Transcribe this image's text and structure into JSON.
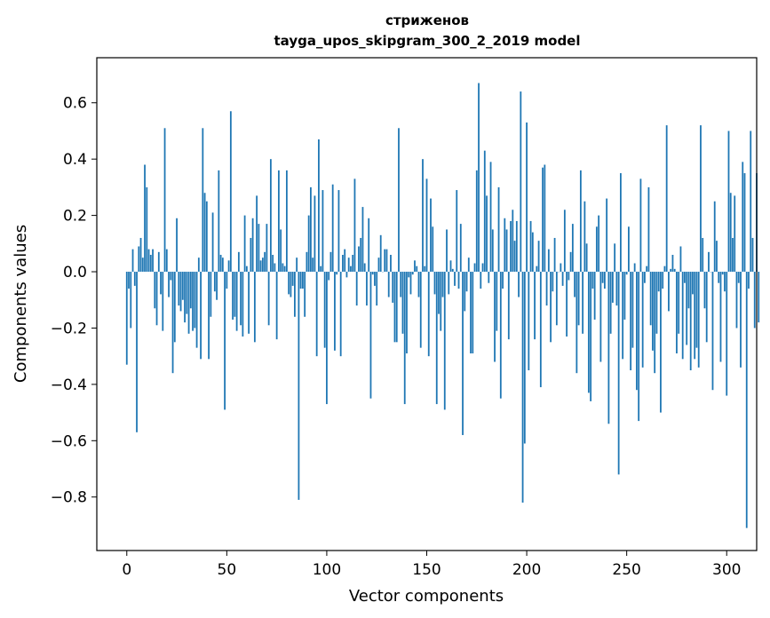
{
  "chart_data": {
    "type": "bar",
    "title_line1": "стриженов",
    "title_line2": "tayga_upos_skipgram_300_2_2019 model",
    "xlabel": "Vector components",
    "ylabel": "Components values",
    "xlim": [
      -15,
      315
    ],
    "ylim": [
      -0.99,
      0.76
    ],
    "xticks": [
      0,
      50,
      100,
      150,
      200,
      250,
      300
    ],
    "xtick_labels": [
      "0",
      "50",
      "100",
      "150",
      "200",
      "250",
      "300"
    ],
    "yticks": [
      -0.8,
      -0.6,
      -0.4,
      -0.2,
      0.0,
      0.2,
      0.4,
      0.6
    ],
    "ytick_labels": [
      "−0.8",
      "−0.6",
      "−0.4",
      "−0.2",
      "0.0",
      "0.2",
      "0.4",
      "0.6"
    ],
    "bar_color": "#1f77b4",
    "grid": false,
    "values": [
      -0.33,
      -0.06,
      -0.2,
      0.08,
      -0.05,
      -0.57,
      0.09,
      0.12,
      0.05,
      0.38,
      0.3,
      0.08,
      0.06,
      0.08,
      -0.13,
      -0.19,
      0.07,
      -0.08,
      -0.21,
      0.51,
      0.08,
      -0.09,
      -0.03,
      -0.36,
      -0.25,
      0.19,
      -0.12,
      -0.14,
      -0.1,
      -0.18,
      -0.15,
      -0.22,
      -0.13,
      -0.21,
      -0.2,
      -0.27,
      0.05,
      -0.31,
      0.51,
      0.28,
      0.25,
      -0.31,
      -0.16,
      0.21,
      -0.07,
      -0.1,
      0.36,
      0.06,
      0.05,
      -0.49,
      -0.06,
      0.04,
      0.57,
      -0.17,
      -0.16,
      -0.21,
      0.07,
      -0.19,
      -0.23,
      0.2,
      0.02,
      -0.22,
      0.12,
      0.19,
      -0.25,
      0.27,
      0.17,
      0.04,
      0.05,
      0.07,
      0.17,
      -0.19,
      0.4,
      0.06,
      0.03,
      -0.24,
      0.36,
      0.15,
      0.03,
      0.02,
      0.36,
      -0.08,
      -0.09,
      -0.05,
      -0.16,
      0.05,
      -0.81,
      -0.06,
      -0.06,
      -0.16,
      0.07,
      0.2,
      0.3,
      0.05,
      0.27,
      -0.3,
      0.47,
      0.02,
      0.29,
      -0.27,
      -0.47,
      -0.03,
      0.07,
      0.31,
      -0.28,
      -0.01,
      0.29,
      -0.3,
      0.06,
      0.08,
      -0.02,
      0.05,
      0.02,
      0.06,
      0.33,
      -0.12,
      0.09,
      0.12,
      0.23,
      0.03,
      -0.12,
      0.19,
      -0.45,
      -0.01,
      -0.05,
      -0.12,
      0.05,
      0.13,
      0.0,
      0.08,
      0.08,
      -0.09,
      0.06,
      -0.11,
      -0.25,
      -0.25,
      0.51,
      -0.09,
      -0.22,
      -0.47,
      -0.29,
      -0.02,
      -0.08,
      -0.01,
      0.04,
      0.02,
      -0.09,
      -0.27,
      0.4,
      0.02,
      0.33,
      -0.3,
      0.26,
      0.16,
      -0.08,
      -0.47,
      -0.15,
      -0.21,
      -0.09,
      -0.49,
      0.15,
      -0.08,
      0.04,
      0.01,
      -0.05,
      0.29,
      -0.06,
      0.17,
      -0.58,
      -0.14,
      -0.07,
      0.05,
      -0.29,
      -0.29,
      0.03,
      0.36,
      0.67,
      -0.06,
      0.03,
      0.43,
      0.27,
      -0.04,
      0.39,
      0.15,
      -0.32,
      -0.21,
      0.3,
      -0.45,
      -0.06,
      0.19,
      0.15,
      -0.24,
      0.18,
      0.22,
      0.11,
      0.18,
      -0.09,
      0.64,
      -0.82,
      -0.61,
      0.53,
      -0.35,
      0.18,
      0.14,
      -0.24,
      0.02,
      0.11,
      -0.41,
      0.37,
      0.38,
      -0.12,
      0.08,
      -0.25,
      -0.07,
      0.12,
      -0.19,
      0.0,
      0.03,
      -0.05,
      0.22,
      -0.23,
      -0.03,
      0.07,
      0.17,
      -0.09,
      -0.36,
      -0.19,
      0.36,
      -0.22,
      0.25,
      0.1,
      -0.43,
      -0.46,
      -0.06,
      -0.17,
      0.16,
      0.2,
      -0.32,
      -0.04,
      -0.06,
      0.26,
      -0.54,
      -0.22,
      -0.11,
      0.1,
      -0.12,
      -0.72,
      0.35,
      -0.31,
      -0.17,
      -0.01,
      0.16,
      -0.35,
      -0.27,
      0.03,
      -0.42,
      -0.53,
      0.33,
      -0.34,
      -0.04,
      0.02,
      0.3,
      -0.19,
      -0.28,
      -0.36,
      -0.22,
      -0.07,
      -0.5,
      -0.06,
      0.02,
      0.52,
      -0.14,
      0.01,
      0.06,
      0.01,
      -0.29,
      -0.22,
      0.09,
      -0.31,
      -0.04,
      -0.26,
      -0.13,
      -0.35,
      -0.08,
      -0.31,
      -0.27,
      -0.34,
      0.52,
      0.12,
      -0.13,
      -0.25,
      0.07,
      0.0,
      -0.42,
      0.25,
      0.11,
      -0.04,
      -0.32,
      -0.01,
      -0.07,
      -0.44,
      0.5,
      0.28,
      0.12,
      0.27,
      -0.2,
      -0.04,
      -0.34,
      0.39,
      0.35,
      -0.91,
      -0.06,
      0.5,
      0.12,
      -0.2,
      0.35,
      -0.18
    ]
  }
}
